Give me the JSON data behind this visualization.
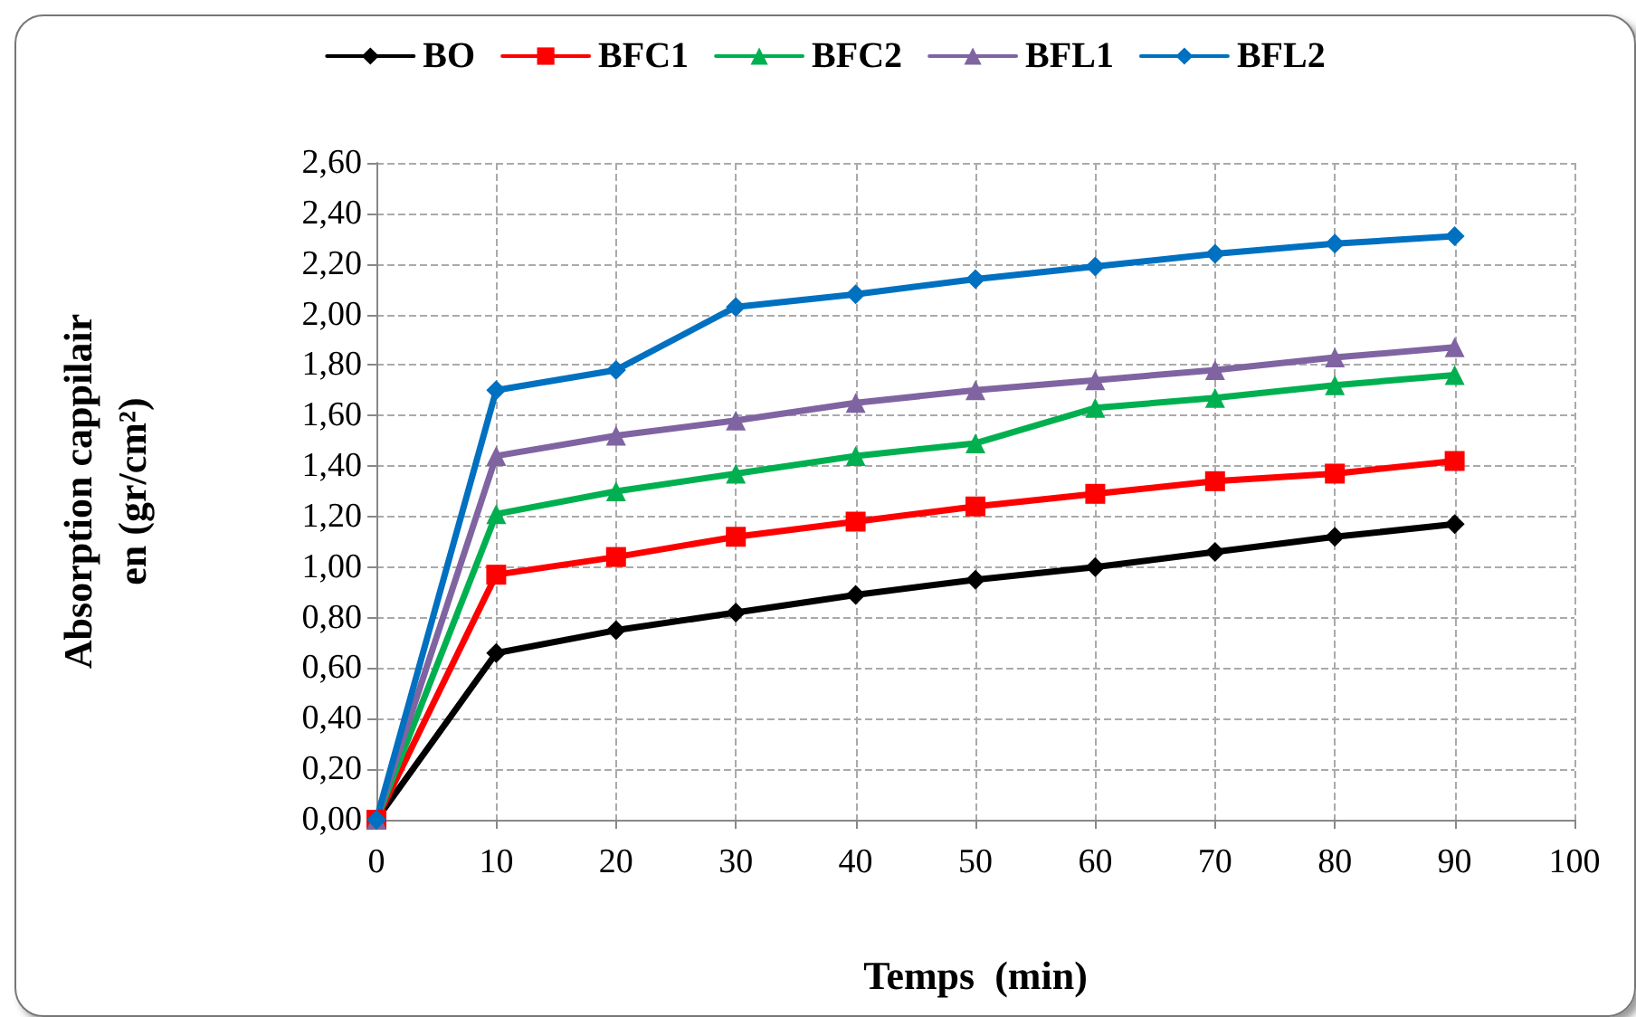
{
  "chart_data": {
    "type": "line",
    "xlabel": "Temps  (min)",
    "ylabel": "Absorption cappilair\nen (gr/cm²)",
    "x": [
      0,
      10,
      20,
      30,
      40,
      50,
      60,
      70,
      80,
      90
    ],
    "xlim": [
      0,
      100
    ],
    "xticks": [
      0,
      10,
      20,
      30,
      40,
      50,
      60,
      70,
      80,
      90,
      100
    ],
    "ylim": [
      0,
      2.6
    ],
    "yticks": [
      {
        "value": 0,
        "label": "0,00"
      },
      {
        "value": 0.2,
        "label": "0,20"
      },
      {
        "value": 0.4,
        "label": "0,40"
      },
      {
        "value": 0.6,
        "label": "0,60"
      },
      {
        "value": 0.8,
        "label": "0,80"
      },
      {
        "value": 1.0,
        "label": "1,00"
      },
      {
        "value": 1.2,
        "label": "1,20"
      },
      {
        "value": 1.4,
        "label": "1,40"
      },
      {
        "value": 1.6,
        "label": "1,60"
      },
      {
        "value": 1.8,
        "label": "1,80"
      },
      {
        "value": 2.0,
        "label": "2,00"
      },
      {
        "value": 2.2,
        "label": "2,20"
      },
      {
        "value": 2.4,
        "label": "2,40"
      },
      {
        "value": 2.6,
        "label": "2,60"
      }
    ],
    "grid": true,
    "legend": "top",
    "line_style": "solid",
    "series": [
      {
        "name": "BO",
        "color": "#000000",
        "marker": "diamond",
        "values": [
          0,
          0.66,
          0.75,
          0.82,
          0.89,
          0.95,
          1.0,
          1.06,
          1.12,
          1.17
        ]
      },
      {
        "name": "BFC1",
        "color": "#ff0000",
        "marker": "square",
        "values": [
          0,
          0.97,
          1.04,
          1.12,
          1.18,
          1.24,
          1.29,
          1.34,
          1.37,
          1.42
        ]
      },
      {
        "name": "BFC2",
        "color": "#00b050",
        "marker": "triangle",
        "values": [
          0,
          1.21,
          1.3,
          1.37,
          1.44,
          1.49,
          1.63,
          1.67,
          1.72,
          1.76
        ]
      },
      {
        "name": "BFL1",
        "color": "#8064a2",
        "marker": "triangle",
        "values": [
          0,
          1.44,
          1.52,
          1.58,
          1.65,
          1.7,
          1.74,
          1.78,
          1.83,
          1.87
        ]
      },
      {
        "name": "BFL2",
        "color": "#0070c0",
        "marker": "diamond",
        "values": [
          0,
          1.7,
          1.78,
          2.03,
          2.08,
          2.14,
          2.19,
          2.24,
          2.28,
          2.31
        ]
      }
    ]
  }
}
